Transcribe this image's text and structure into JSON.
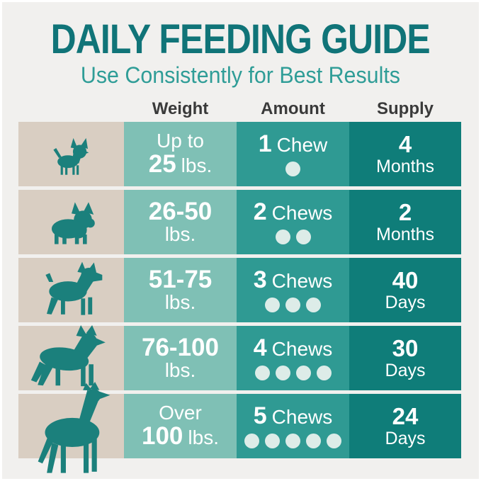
{
  "page": {
    "background": "#f1f0ee",
    "frame_color": "#ffffff"
  },
  "header": {
    "title": "DAILY FEEDING GUIDE",
    "subtitle": "Use Consistently for Best Results"
  },
  "table": {
    "column_headers": {
      "weight": "Weight",
      "amount": "Amount",
      "supply": "Supply"
    },
    "rows": [
      {
        "dog": "chihuahua",
        "weight": {
          "top_regular": "Up to",
          "top_bold": "",
          "bottom_bold": "25",
          "bottom_regular": "lbs."
        },
        "amount": {
          "count": "1",
          "word": "Chew"
        },
        "chews": 1,
        "supply": {
          "value": "4",
          "unit": "Months"
        }
      },
      {
        "dog": "french-bulldog",
        "weight": {
          "top_regular": "",
          "top_bold": "26-50",
          "bottom_bold": "",
          "bottom_regular": "lbs."
        },
        "amount": {
          "count": "2",
          "word": "Chews"
        },
        "chews": 2,
        "supply": {
          "value": "2",
          "unit": "Months"
        }
      },
      {
        "dog": "boxer",
        "weight": {
          "top_regular": "",
          "top_bold": "51-75",
          "bottom_bold": "",
          "bottom_regular": "lbs."
        },
        "amount": {
          "count": "3",
          "word": "Chews"
        },
        "chews": 3,
        "supply": {
          "value": "40",
          "unit": "Days"
        }
      },
      {
        "dog": "german-shepherd",
        "weight": {
          "top_regular": "",
          "top_bold": "76-100",
          "bottom_bold": "",
          "bottom_regular": "lbs."
        },
        "amount": {
          "count": "4",
          "word": "Chews"
        },
        "chews": 4,
        "supply": {
          "value": "30",
          "unit": "Days"
        }
      },
      {
        "dog": "great-dane",
        "weight": {
          "top_regular": "Over",
          "top_bold": "",
          "bottom_bold": "100",
          "bottom_regular": "lbs."
        },
        "amount": {
          "count": "5",
          "word": "Chews"
        },
        "chews": 5,
        "supply": {
          "value": "24",
          "unit": "Days"
        }
      }
    ]
  },
  "colors": {
    "title_teal": "#107478",
    "subtitle_teal": "#2f9d97",
    "header_text": "#3a3a3a",
    "dog_column_bg": "#d9cec2",
    "weight_column_bg": "#7fc0b5",
    "amount_column_bg": "#2f9a93",
    "supply_column_bg": "#0f7d79",
    "dog_silhouette": "#1b807c",
    "chew_dot": "#ddece8",
    "row_text": "#ffffff",
    "page_bg": "#f1f0ee"
  },
  "chart_data": {
    "type": "table",
    "title": "DAILY FEEDING GUIDE",
    "subtitle": "Use Consistently for Best Results",
    "columns": [
      "Weight",
      "Amount",
      "Supply"
    ],
    "rows": [
      [
        "Up to 25 lbs.",
        "1 Chew",
        "4 Months"
      ],
      [
        "26-50 lbs.",
        "2 Chews",
        "2 Months"
      ],
      [
        "51-75 lbs.",
        "3 Chews",
        "40 Days"
      ],
      [
        "76-100 lbs.",
        "4 Chews",
        "30 Days"
      ],
      [
        "Over 100 lbs.",
        "5 Chews",
        "24 Days"
      ]
    ],
    "row_icons": [
      "chihuahua",
      "french-bulldog",
      "boxer",
      "german-shepherd",
      "great-dane"
    ],
    "chews_per_row": [
      1,
      2,
      3,
      4,
      5
    ],
    "legend_position": "none",
    "grid": false
  }
}
